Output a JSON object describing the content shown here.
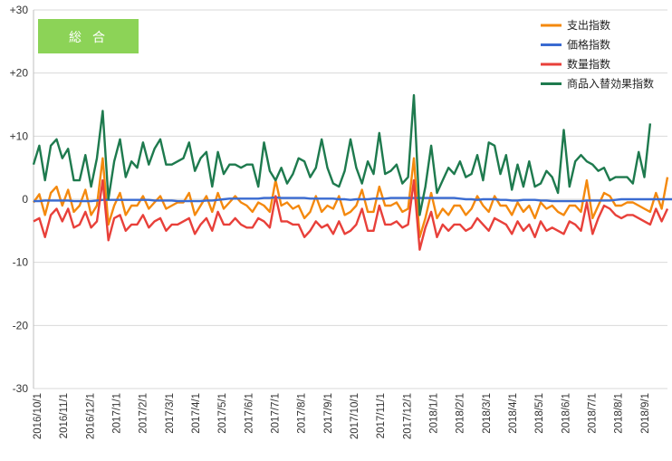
{
  "badge": {
    "text": "総合",
    "color": "#8cd357"
  },
  "chart_data": {
    "type": "line",
    "title": "",
    "xlabel": "",
    "ylabel": "",
    "ylim": [
      -30,
      30
    ],
    "yticks": [
      30,
      20,
      10,
      0,
      -10,
      -20,
      -30
    ],
    "ytick_labels": [
      "+30",
      "+20",
      "+10",
      "0",
      "-10",
      "-20",
      "-30"
    ],
    "grid": "horizontal",
    "legend_position": "top-right",
    "x_labels": [
      "2016/10/1",
      "2016/11/1",
      "2016/12/1",
      "2017/1/1",
      "2017/2/1",
      "2017/3/1",
      "2017/4/1",
      "2017/5/1",
      "2017/6/1",
      "2017/7/1",
      "2017/8/1",
      "2017/9/1",
      "2017/10/1",
      "2017/11/1",
      "2017/12/1",
      "2018/1/1",
      "2018/2/1",
      "2018/3/1",
      "2018/4/1",
      "2018/5/1",
      "2018/6/1",
      "2018/7/1",
      "2018/8/1",
      "2018/9/1"
    ],
    "series": [
      {
        "name": "支出指数",
        "color": "#f4890e",
        "values": [
          -0.5,
          0.8,
          -2.5,
          1,
          2,
          -1,
          1.5,
          -2,
          -1,
          1.5,
          -2.5,
          -1,
          6.5,
          -4,
          -1,
          1,
          -2.5,
          -1,
          -1,
          0.5,
          -1.5,
          -0.5,
          0.5,
          -1.5,
          -1,
          -0.5,
          -0.5,
          1,
          -2.5,
          -1,
          0.5,
          -2,
          1,
          -1.5,
          -0.5,
          0.5,
          -0.5,
          -1,
          -2,
          -0.5,
          -1,
          -2,
          3,
          -1,
          -0.5,
          -1.5,
          -1,
          -3,
          -2,
          0.5,
          -2,
          -1,
          -1.5,
          0.5,
          -2.5,
          -2,
          -1,
          1.5,
          -2,
          -2,
          2,
          -1,
          -1,
          -0.5,
          -2,
          -1.5,
          6.5,
          -6,
          -3,
          1,
          -3,
          -1.5,
          -2.5,
          -1,
          -1,
          -2.5,
          -1.5,
          0.5,
          -1,
          -2,
          0.5,
          -1,
          -1,
          -2.5,
          -0.5,
          -2,
          -1,
          -3,
          -0.5,
          -1.5,
          -1,
          -2,
          -2.5,
          -1,
          -1,
          -2,
          3,
          -3,
          -1,
          1,
          0.5,
          -1,
          -1,
          -0.5,
          -0.5,
          -1,
          -1.5,
          -2,
          1,
          -1.5,
          3.5
        ]
      },
      {
        "name": "価格指数",
        "color": "#3a6bd1",
        "values": [
          -0.3,
          -0.3,
          -0.2,
          -0.2,
          -0.2,
          -0.2,
          -0.2,
          -0.3,
          -0.3,
          -0.3,
          -0.3,
          -0.2,
          -0.1,
          -0.1,
          -0.1,
          -0.1,
          -0.1,
          -0.1,
          -0.1,
          -0.1,
          -0.1,
          -0.2,
          -0.2,
          -0.2,
          -0.2,
          -0.3,
          -0.3,
          -0.3,
          -0.3,
          -0.3,
          -0.2,
          -0.2,
          -0.1,
          0,
          0.1,
          0.1,
          0.1,
          0.1,
          0.1,
          0.1,
          0.2,
          0.2,
          0.3,
          0.2,
          0.2,
          0.2,
          0.2,
          0.2,
          0.1,
          0.1,
          0.1,
          0.1,
          0.1,
          0,
          0,
          -0.1,
          0,
          0,
          0,
          0.1,
          0.1,
          0.1,
          0.2,
          0.2,
          0.2,
          0.2,
          0.2,
          0.2,
          0.2,
          0.2,
          0.2,
          0.2,
          0.2,
          0.2,
          0.1,
          0,
          0,
          -0.1,
          0,
          0,
          0,
          -0.1,
          -0.1,
          -0.2,
          -0.2,
          -0.1,
          -0.1,
          -0.1,
          -0.2,
          -0.2,
          -0.3,
          -0.3,
          -0.3,
          -0.3,
          -0.3,
          -0.3,
          -0.2,
          -0.2,
          -0.2,
          -0.2,
          -0.2,
          -0.1,
          0,
          0,
          0,
          0,
          0,
          0,
          0,
          0,
          0,
          0,
          0
        ]
      },
      {
        "name": "数量指数",
        "color": "#e8403a",
        "values": [
          -3.5,
          -3,
          -6,
          -2.5,
          -1.5,
          -3.5,
          -1.5,
          -4.5,
          -4,
          -2,
          -4.5,
          -3.5,
          3,
          -6.5,
          -3,
          -2.5,
          -5,
          -4,
          -4,
          -2.5,
          -4.5,
          -3.5,
          -3,
          -5,
          -4,
          -4,
          -3.5,
          -3,
          -5.5,
          -4,
          -3,
          -5,
          -2,
          -4,
          -4,
          -3,
          -4,
          -4.5,
          -4.5,
          -3,
          -3.5,
          -4.5,
          0.5,
          -3.5,
          -3.5,
          -4,
          -4,
          -6,
          -5,
          -3.5,
          -4.5,
          -4,
          -5.5,
          -3.5,
          -5.5,
          -5,
          -4,
          -1.5,
          -5,
          -5,
          -1,
          -4,
          -4,
          -3.5,
          -4.5,
          -4,
          3,
          -8,
          -4.5,
          -2,
          -6,
          -4,
          -5,
          -4,
          -4,
          -5,
          -4.5,
          -3,
          -4,
          -5,
          -3,
          -3.5,
          -4,
          -5.5,
          -3.5,
          -5,
          -4,
          -6,
          -3.5,
          -5,
          -4.5,
          -5,
          -5.5,
          -3.5,
          -4,
          -5,
          -0.5,
          -5.5,
          -3,
          -1,
          -1.5,
          -2.5,
          -3,
          -2.5,
          -2.5,
          -3,
          -3.5,
          -4,
          -1.5,
          -3.5,
          -1.5
        ]
      },
      {
        "name": "商品入替効果指数",
        "color": "#1e7a4e",
        "values": [
          5.5,
          8.5,
          3,
          8.5,
          9.5,
          6.5,
          8,
          3,
          3,
          7,
          2,
          6.5,
          14,
          0,
          6,
          9.5,
          3.5,
          6,
          5,
          9,
          5.5,
          8,
          9.5,
          5.5,
          5.5,
          6,
          6.5,
          9,
          4.5,
          6.5,
          7.5,
          2,
          7.5,
          4,
          5.5,
          5.5,
          5,
          5.5,
          5.5,
          2,
          9,
          4.5,
          3,
          5,
          2.5,
          4,
          6.5,
          6,
          3.5,
          5,
          9.5,
          5,
          2.5,
          2,
          4.5,
          9.5,
          5,
          2.5,
          6,
          4,
          10.5,
          4,
          4.5,
          5.5,
          2.5,
          3.5,
          16.5,
          -2.5,
          2,
          8.5,
          1,
          3,
          5,
          4,
          6,
          3.5,
          4,
          7,
          3,
          9,
          8.5,
          4,
          7,
          1.5,
          5.5,
          2,
          6,
          2,
          2.5,
          4.5,
          3.5,
          1,
          11,
          2,
          6,
          7,
          6,
          5.5,
          4.5,
          5,
          3,
          3.5,
          3.5,
          3.5,
          2.5,
          7.5,
          3.5,
          12
        ]
      }
    ]
  }
}
